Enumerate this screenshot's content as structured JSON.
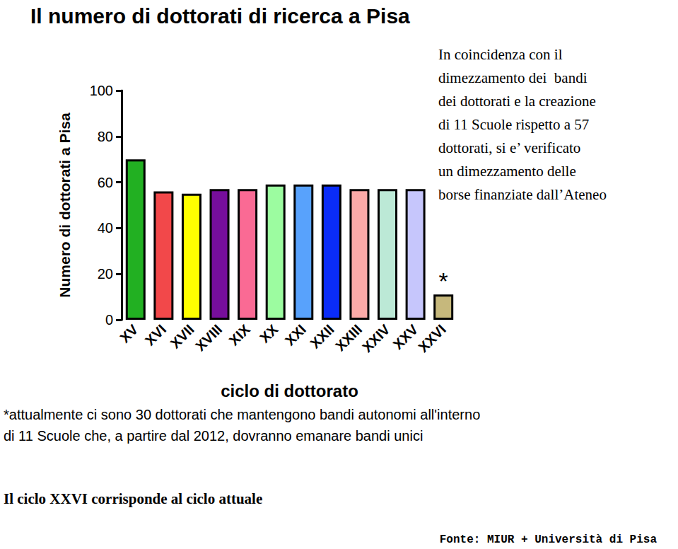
{
  "chart_data": {
    "type": "bar",
    "title": "Il numero di dottorati di ricerca a Pisa",
    "x_label": "ciclo di dottorato",
    "y_label": "Numero di dottorati a Pisa",
    "categories": [
      "XV",
      "XVI",
      "XVII",
      "XVIII",
      "XIX",
      "XX",
      "XXI",
      "XXII",
      "XXIII",
      "XXIV",
      "XXV",
      "XXVI"
    ],
    "values": [
      70,
      56,
      55,
      57,
      57,
      59,
      59,
      59,
      57,
      57,
      57,
      11
    ],
    "colors": [
      "#22b022",
      "#f2484a",
      "#ffff00",
      "#760e9c",
      "#fa6a94",
      "#9cfca0",
      "#58a2fc",
      "#0a2cf8",
      "#fcaaa8",
      "#bce9d6",
      "#c6c6fc",
      "#c6b87c"
    ],
    "ylim": [
      0,
      100
    ],
    "yticks": [
      0,
      20,
      40,
      60,
      80,
      100
    ],
    "grid": false,
    "annotations": {
      "side_note": "In coincidenza con il\ndimezzamento dei  bandi\ndei dottorati e la creazione\ndi 11 Scuole rispetto a 57\ndottorati, si e’ verificato\nun dimezzamento delle\nborse finanziate dall’Ateneo",
      "bar_mark": {
        "text": "*",
        "category": "XXVI"
      },
      "footnote": "*attualmente ci sono 30 dottorati che mantengono bandi autonomi all'interno\ndi 11 Scuole che, a partire dal 2012, dovranno emanare bandi unici",
      "note": "Il ciclo XXVI corrisponde al ciclo attuale",
      "source": "Fonte: MIUR + Università di Pisa"
    }
  }
}
